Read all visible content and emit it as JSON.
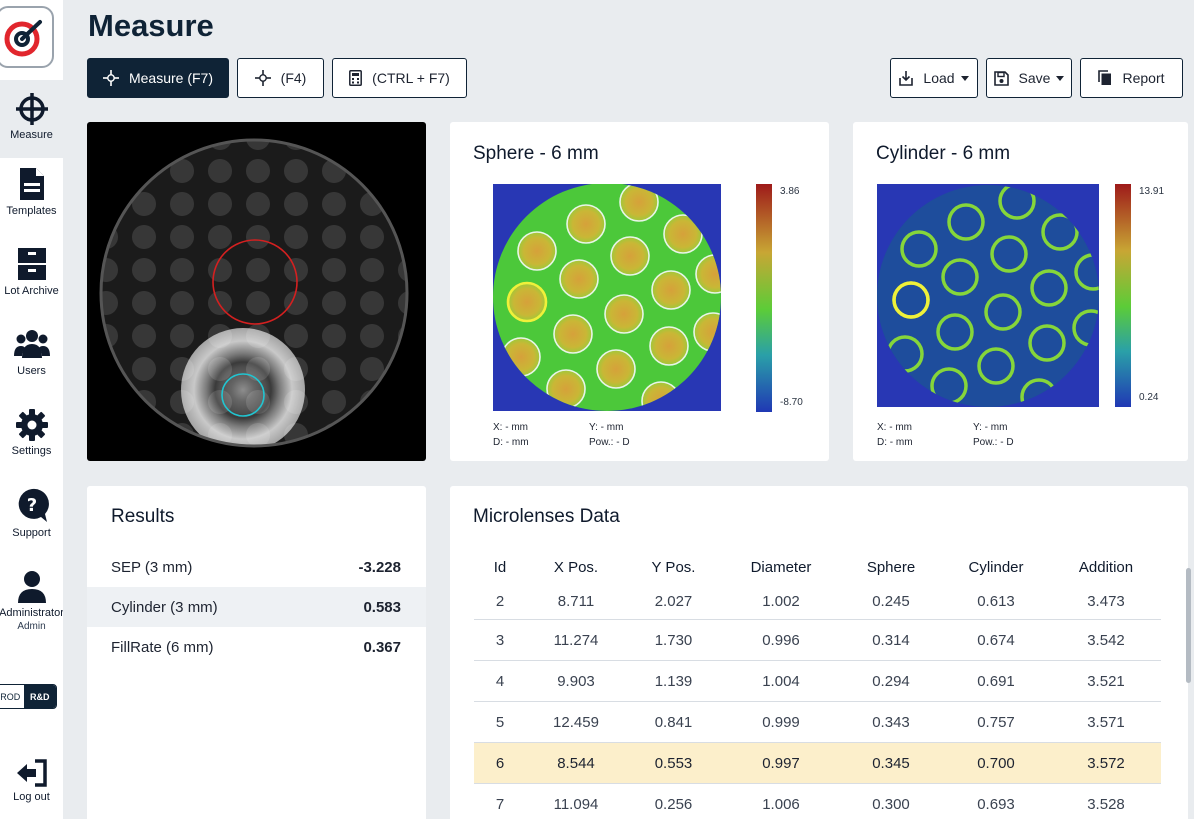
{
  "nav": {
    "items": [
      {
        "label": "Measure",
        "icon": "crosshair-icon"
      },
      {
        "label": "Templates",
        "icon": "document-icon"
      },
      {
        "label": "Lot Archive",
        "icon": "archive-icon"
      },
      {
        "label": "Users",
        "icon": "users-icon"
      },
      {
        "label": "Settings",
        "icon": "gear-icon"
      },
      {
        "label": "Support",
        "icon": "question-bubble-icon"
      },
      {
        "label": "Administrator",
        "sub": "Admin",
        "icon": "user-icon"
      },
      {
        "label": "Log out",
        "icon": "logout-icon"
      }
    ],
    "mode": {
      "off": "PROD",
      "on": "R&D"
    }
  },
  "page": {
    "title": "Measure"
  },
  "toolbar": {
    "measure": "Measure (F7)",
    "crosshair": "(F4)",
    "calc": "(CTRL + F7)",
    "load": "Load",
    "save": "Save",
    "report": "Report"
  },
  "sphere": {
    "title": "Sphere - 6 mm",
    "cb_max": "3.86",
    "cb_min": "-8.70",
    "x": "X: - mm",
    "y": "Y: - mm",
    "d": "D: - mm",
    "pow": "Pow.: - D"
  },
  "cylinder": {
    "title": "Cylinder - 6 mm",
    "cb_max": "13.91",
    "cb_min": "0.24",
    "x": "X: - mm",
    "y": "Y: - mm",
    "d": "D: - mm",
    "pow": "Pow.: - D"
  },
  "results": {
    "title": "Results",
    "rows": [
      {
        "label": "SEP (3 mm)",
        "value": "-3.228"
      },
      {
        "label": "Cylinder (3 mm)",
        "value": "0.583"
      },
      {
        "label": "FillRate (6 mm)",
        "value": "0.367"
      }
    ]
  },
  "microlenses": {
    "title": "Microlenses Data",
    "headers": [
      "Id",
      "X Pos.",
      "Y Pos.",
      "Diameter",
      "Sphere",
      "Cylinder",
      "Addition"
    ],
    "rows": [
      [
        "2",
        "8.711",
        "2.027",
        "1.002",
        "0.245",
        "0.613",
        "3.473"
      ],
      [
        "3",
        "11.274",
        "1.730",
        "0.996",
        "0.314",
        "0.674",
        "3.542"
      ],
      [
        "4",
        "9.903",
        "1.139",
        "1.004",
        "0.294",
        "0.691",
        "3.521"
      ],
      [
        "5",
        "12.459",
        "0.841",
        "0.999",
        "0.343",
        "0.757",
        "3.571"
      ],
      [
        "6",
        "8.544",
        "0.553",
        "0.997",
        "0.345",
        "0.700",
        "3.572"
      ],
      [
        "7",
        "11.094",
        "0.256",
        "1.006",
        "0.300",
        "0.693",
        "3.528"
      ]
    ],
    "highlight_id": "6"
  },
  "colors": {
    "primary": "#0f2336",
    "highlight": "#fcefcb",
    "background": "#e9ecef"
  }
}
